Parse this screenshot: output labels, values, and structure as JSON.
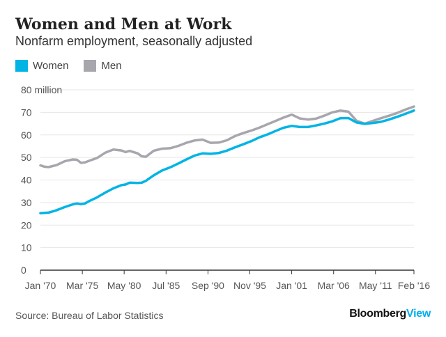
{
  "header": {
    "title": "Women and Men at Work",
    "subtitle": "Nonfarm employment, seasonally adjusted"
  },
  "footer": {
    "source": "Source: Bureau of Labor Statistics",
    "brand_main": "Bloomberg",
    "brand_accent": "View"
  },
  "colors": {
    "women": "#00b4e4",
    "men": "#a8a6ad",
    "grid": "#e6e6e6",
    "axis": "#333333"
  },
  "chart_data": {
    "type": "line",
    "ylim": [
      0,
      80
    ],
    "yticks": [
      0,
      10,
      20,
      30,
      40,
      50,
      60,
      70,
      80
    ],
    "ytick_labels": [
      "0",
      "10",
      "20",
      "30",
      "40",
      "50",
      "60",
      "70",
      "80 million"
    ],
    "xlim": [
      1970.0,
      2016.08
    ],
    "xticks": [
      1970.0,
      1975.17,
      1980.33,
      1985.5,
      1990.67,
      1995.83,
      2001.0,
      2006.17,
      2011.33,
      2016.08
    ],
    "xtick_labels": [
      "Jan '70",
      "Mar '75",
      "May '80",
      "Jul '85",
      "Sep '90",
      "Nov '95",
      "Jan '01",
      "Mar '06",
      "May '11",
      "Feb '16"
    ],
    "legend_position": "top-left",
    "grid": true,
    "series": [
      {
        "name": "Women",
        "color_key": "women",
        "x": [
          1970.0,
          1971.0,
          1972.0,
          1973.0,
          1974.0,
          1974.5,
          1975.0,
          1975.5,
          1976.0,
          1977.0,
          1978.0,
          1979.0,
          1980.0,
          1980.5,
          1981.0,
          1982.0,
          1982.5,
          1983.0,
          1984.0,
          1985.0,
          1986.0,
          1987.0,
          1988.0,
          1989.0,
          1990.0,
          1991.0,
          1992.0,
          1993.0,
          1994.0,
          1995.0,
          1996.0,
          1997.0,
          1998.0,
          1999.0,
          2000.0,
          2001.0,
          2002.0,
          2003.0,
          2004.0,
          2005.0,
          2006.0,
          2007.0,
          2008.0,
          2009.0,
          2010.0,
          2011.0,
          2012.0,
          2013.0,
          2014.0,
          2015.0,
          2016.08
        ],
        "values": [
          25.3,
          25.5,
          26.6,
          28.0,
          29.2,
          29.6,
          29.3,
          29.6,
          30.6,
          32.3,
          34.4,
          36.3,
          37.7,
          38.0,
          38.8,
          38.7,
          38.8,
          39.6,
          42.1,
          44.2,
          45.6,
          47.3,
          49.1,
          50.8,
          51.8,
          51.6,
          52.0,
          53.0,
          54.5,
          55.8,
          57.2,
          58.9,
          60.2,
          61.7,
          63.2,
          64.0,
          63.5,
          63.5,
          64.2,
          65.0,
          66.0,
          67.4,
          67.5,
          65.5,
          64.9,
          65.3,
          65.8,
          66.8,
          68.0,
          69.3,
          70.8
        ]
      },
      {
        "name": "Men",
        "color_key": "men",
        "x": [
          1970.0,
          1970.5,
          1971.0,
          1972.0,
          1973.0,
          1974.0,
          1974.5,
          1975.0,
          1975.5,
          1976.0,
          1977.0,
          1978.0,
          1979.0,
          1980.0,
          1980.5,
          1981.0,
          1982.0,
          1982.5,
          1983.0,
          1984.0,
          1985.0,
          1986.0,
          1987.0,
          1988.0,
          1989.0,
          1990.0,
          1991.0,
          1992.0,
          1993.0,
          1994.0,
          1995.0,
          1996.0,
          1997.0,
          1998.0,
          1999.0,
          2000.0,
          2001.0,
          2002.0,
          2003.0,
          2004.0,
          2005.0,
          2006.0,
          2007.0,
          2008.0,
          2009.0,
          2010.0,
          2011.0,
          2012.0,
          2013.0,
          2014.0,
          2015.0,
          2016.08
        ],
        "values": [
          46.5,
          45.9,
          45.7,
          46.6,
          48.3,
          49.1,
          49.0,
          47.6,
          47.8,
          48.5,
          49.8,
          52.1,
          53.5,
          53.1,
          52.4,
          52.9,
          51.8,
          50.5,
          50.3,
          53.0,
          53.9,
          54.1,
          55.1,
          56.5,
          57.5,
          57.9,
          56.5,
          56.6,
          57.6,
          59.5,
          60.8,
          61.9,
          63.2,
          64.7,
          66.2,
          67.7,
          69.0,
          67.3,
          66.8,
          67.2,
          68.5,
          70.0,
          70.8,
          70.3,
          66.3,
          65.0,
          66.2,
          67.4,
          68.5,
          69.7,
          71.2,
          72.6
        ]
      }
    ]
  }
}
